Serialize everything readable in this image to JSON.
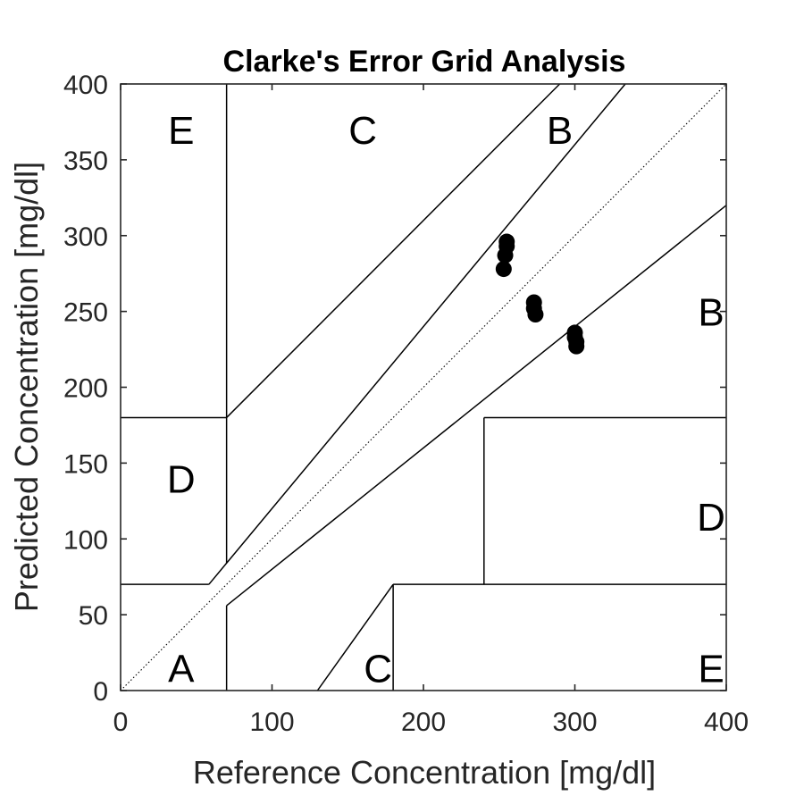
{
  "chart_data": {
    "type": "scatter",
    "title": "Clarke's Error Grid Analysis",
    "xlabel": "Reference Concentration [mg/dl]",
    "ylabel": "Predicted Concentration [mg/dl]",
    "xlim": [
      0,
      400
    ],
    "ylim": [
      0,
      400
    ],
    "xticks": [
      0,
      100,
      200,
      300,
      400
    ],
    "yticks": [
      0,
      50,
      100,
      150,
      200,
      250,
      300,
      350,
      400
    ],
    "grid": false,
    "diagonal_reference": "y = x",
    "zone_boundaries": [
      [
        [
          0,
          70
        ],
        [
          58.3,
          70
        ]
      ],
      [
        [
          58.3,
          70
        ],
        [
          333.3,
          400
        ]
      ],
      [
        [
          70,
          84
        ],
        [
          70,
          400
        ]
      ],
      [
        [
          70,
          56
        ],
        [
          400,
          320
        ]
      ],
      [
        [
          70,
          0
        ],
        [
          70,
          56
        ]
      ],
      [
        [
          70,
          180
        ],
        [
          290,
          400
        ]
      ],
      [
        [
          0,
          180
        ],
        [
          70,
          180
        ]
      ],
      [
        [
          240,
          70
        ],
        [
          240,
          180
        ]
      ],
      [
        [
          240,
          180
        ],
        [
          400,
          180
        ]
      ],
      [
        [
          130,
          0
        ],
        [
          180,
          70
        ]
      ],
      [
        [
          180,
          0
        ],
        [
          180,
          70
        ]
      ],
      [
        [
          180,
          70
        ],
        [
          400,
          70
        ]
      ]
    ],
    "zone_labels": [
      {
        "text": "E",
        "x": 40,
        "y": 370
      },
      {
        "text": "C",
        "x": 160,
        "y": 370
      },
      {
        "text": "B",
        "x": 290,
        "y": 370
      },
      {
        "text": "B",
        "x": 390,
        "y": 250
      },
      {
        "text": "D",
        "x": 40,
        "y": 140
      },
      {
        "text": "D",
        "x": 390,
        "y": 115
      },
      {
        "text": "A",
        "x": 40,
        "y": 15
      },
      {
        "text": "C",
        "x": 170,
        "y": 15
      },
      {
        "text": "E",
        "x": 390,
        "y": 15
      }
    ],
    "series": [
      {
        "x": [
          255,
          255,
          254,
          253,
          273,
          273,
          274,
          300,
          300,
          301,
          301
        ],
        "y": [
          296,
          293,
          287,
          278,
          256,
          252,
          248,
          236,
          233,
          230,
          227
        ]
      }
    ]
  }
}
